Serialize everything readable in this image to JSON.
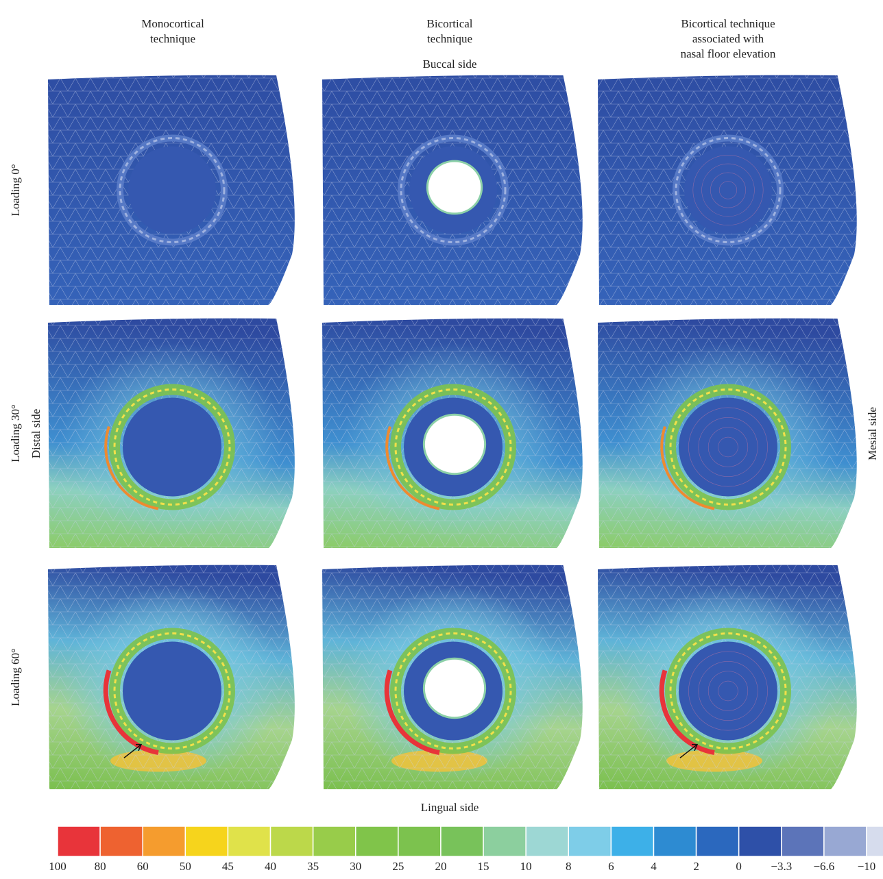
{
  "header": {
    "columns": [
      {
        "lines": [
          "Monocortical",
          "technique"
        ]
      },
      {
        "lines": [
          "Bicortical",
          "technique"
        ]
      },
      {
        "lines": [
          "Bicortical technique",
          "associated with",
          "nasal floor elevation"
        ]
      }
    ]
  },
  "rows": [
    "Loading 0°",
    "Loading 30°",
    "Loading 60°"
  ],
  "sides": {
    "top": "Buccal side",
    "bottom": "Lingual side",
    "left": "Distal side",
    "right": "Mesial side"
  },
  "colorbar": {
    "labels": [
      "100",
      "80",
      "60",
      "50",
      "45",
      "40",
      "35",
      "30",
      "25",
      "20",
      "15",
      "10",
      "8",
      "6",
      "4",
      "2",
      "0",
      "−3.3",
      "−6.6",
      "−10"
    ],
    "colors": [
      "#e8343a",
      "#ee6230",
      "#f59c2e",
      "#f6d41c",
      "#e0e24a",
      "#bcd84a",
      "#98cc4a",
      "#80c44a",
      "#7cc24e",
      "#78c25a",
      "#8ccf9e",
      "#9dd7d4",
      "#7ecde8",
      "#3db0e8",
      "#2d8bd2",
      "#2b68be",
      "#2e50a8",
      "#5c74b9",
      "#98a8d3",
      "#d6dced"
    ]
  }
}
